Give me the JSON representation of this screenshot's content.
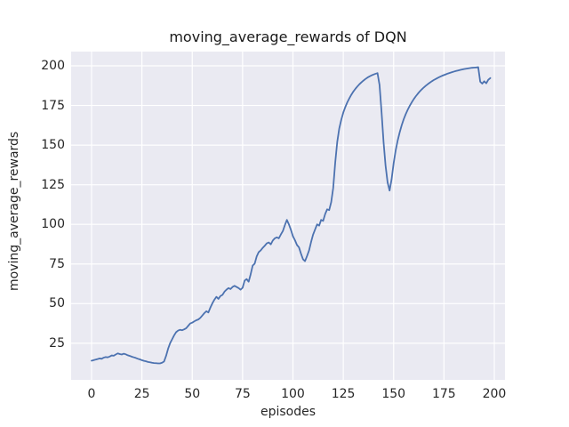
{
  "chart_data": {
    "type": "line",
    "title": "moving_average_rewards of DQN",
    "xlabel": "episodes",
    "ylabel": "moving_average_rewards",
    "x_start": 0,
    "x_step": 1,
    "xticks": [
      0,
      25,
      50,
      75,
      100,
      125,
      150,
      175,
      200
    ],
    "yticks": [
      25,
      50,
      75,
      100,
      125,
      150,
      175,
      200
    ],
    "xlim": [
      -10.15,
      205.3
    ],
    "ylim": [
      1.9,
      209.0
    ],
    "grid": true,
    "legend_position": "none",
    "line_color": "#4c72b0",
    "panel_bg": "#eaeaf2",
    "grid_color": "#ffffff",
    "text_color": "#262626",
    "figure_bg": "#ffffff",
    "values": [
      14.0,
      14.3,
      14.7,
      15.0,
      15.4,
      15.2,
      15.9,
      16.3,
      16.1,
      16.6,
      17.3,
      17.1,
      17.9,
      18.6,
      18.2,
      17.9,
      18.4,
      18.0,
      17.4,
      17.0,
      16.5,
      16.1,
      15.7,
      15.2,
      14.8,
      14.3,
      13.9,
      13.6,
      13.2,
      13.0,
      12.7,
      12.5,
      12.4,
      12.3,
      12.3,
      12.7,
      13.5,
      17.0,
      21.5,
      25.0,
      27.5,
      30.0,
      32.0,
      33.0,
      33.5,
      33.2,
      33.8,
      34.5,
      36.0,
      37.5,
      38.0,
      38.8,
      39.5,
      40.0,
      41.0,
      42.5,
      44.0,
      45.2,
      44.4,
      47.5,
      50.2,
      52.5,
      54.3,
      53.0,
      54.8,
      55.5,
      57.5,
      58.8,
      59.8,
      59.2,
      60.5,
      61.2,
      60.5,
      59.8,
      58.8,
      60.0,
      64.5,
      65.5,
      63.8,
      68.5,
      74.0,
      75.2,
      79.8,
      82.5,
      83.6,
      85.2,
      86.5,
      88.0,
      88.6,
      87.4,
      89.8,
      91.2,
      91.8,
      91.2,
      93.6,
      95.8,
      99.5,
      102.8,
      100.0,
      96.5,
      92.5,
      90.0,
      87.0,
      85.5,
      81.5,
      78.0,
      76.8,
      80.0,
      83.5,
      88.8,
      93.5,
      96.8,
      100.0,
      99.2,
      102.8,
      102.2,
      106.5,
      109.5,
      109.0,
      114.0,
      123.0,
      139.0,
      152.0,
      160.5,
      166.0,
      170.5,
      174.0,
      177.0,
      179.5,
      181.8,
      183.8,
      185.5,
      187.0,
      188.4,
      189.6,
      190.7,
      191.7,
      192.6,
      193.3,
      194.0,
      194.5,
      195.0,
      195.4,
      188.0,
      171.0,
      152.0,
      137.0,
      126.5,
      121.3,
      128.5,
      138.5,
      146.5,
      152.8,
      158.0,
      162.5,
      166.3,
      169.5,
      172.3,
      174.8,
      177.0,
      179.0,
      180.8,
      182.4,
      183.9,
      185.2,
      186.4,
      187.5,
      188.5,
      189.4,
      190.3,
      191.1,
      191.8,
      192.5,
      193.1,
      193.7,
      194.2,
      194.7,
      195.2,
      195.6,
      196.0,
      196.4,
      196.8,
      197.1,
      197.4,
      197.7,
      198.0,
      198.2,
      198.4,
      198.6,
      198.8,
      198.9,
      199.0,
      199.2,
      190.0,
      188.8,
      190.3,
      189.0,
      191.2,
      192.3
    ]
  }
}
